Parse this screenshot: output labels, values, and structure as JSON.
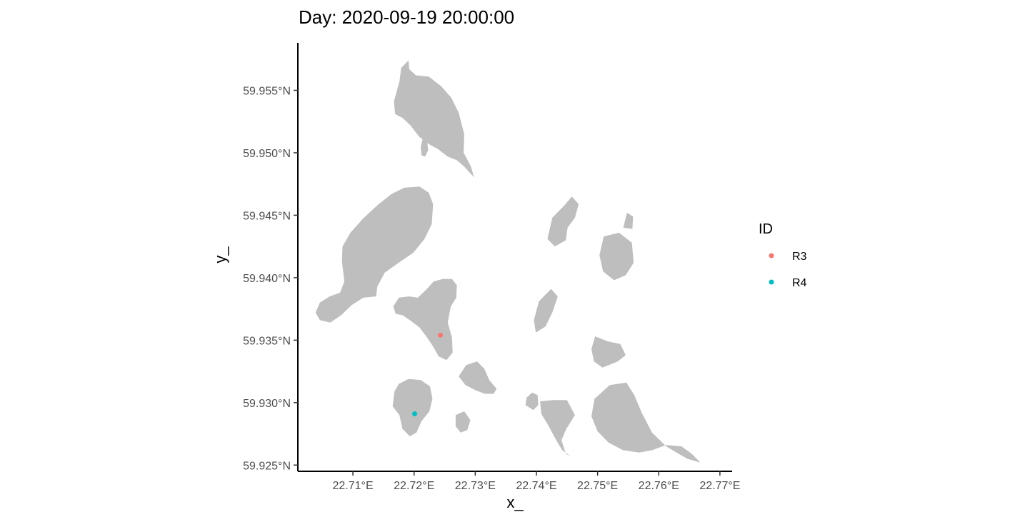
{
  "chart_data": {
    "type": "scatter",
    "title": "Day: 2020-09-19 20:00:00",
    "xlabel": "x_",
    "ylabel": "y_",
    "xlim": [
      22.701,
      22.772
    ],
    "ylim": [
      59.9245,
      59.9588
    ],
    "x_ticks": [
      {
        "value": 22.71,
        "label": "22.71°E"
      },
      {
        "value": 22.72,
        "label": "22.72°E"
      },
      {
        "value": 22.73,
        "label": "22.73°E"
      },
      {
        "value": 22.74,
        "label": "22.74°E"
      },
      {
        "value": 22.75,
        "label": "22.75°E"
      },
      {
        "value": 22.76,
        "label": "22.76°E"
      },
      {
        "value": 22.77,
        "label": "22.77°E"
      }
    ],
    "y_ticks": [
      {
        "value": 59.925,
        "label": "59.925°N"
      },
      {
        "value": 59.93,
        "label": "59.930°N"
      },
      {
        "value": 59.935,
        "label": "59.935°N"
      },
      {
        "value": 59.94,
        "label": "59.940°N"
      },
      {
        "value": 59.945,
        "label": "59.945°N"
      },
      {
        "value": 59.95,
        "label": "59.950°N"
      },
      {
        "value": 59.955,
        "label": "59.955°N"
      }
    ],
    "grid": false,
    "legend": {
      "title": "ID",
      "placement": "right"
    },
    "series": [
      {
        "name": "R3",
        "color": "#F8766D",
        "x": [
          22.7243
        ],
        "y": [
          59.9354
        ]
      },
      {
        "name": "R4",
        "color": "#00BFC4",
        "x": [
          22.7201
        ],
        "y": [
          59.9291
        ]
      }
    ],
    "land_color": "#bebebe",
    "islands": [
      [
        [
          22.7167,
          59.9541
        ],
        [
          22.7176,
          59.9557
        ],
        [
          22.7179,
          59.9568
        ],
        [
          22.7191,
          59.9574
        ],
        [
          22.7192,
          59.9567
        ],
        [
          22.7203,
          59.9562
        ],
        [
          22.7224,
          59.9561
        ],
        [
          22.7245,
          59.9553
        ],
        [
          22.7261,
          59.9544
        ],
        [
          22.7273,
          59.9532
        ],
        [
          22.7282,
          59.9515
        ],
        [
          22.7281,
          59.95
        ],
        [
          22.7293,
          59.9489
        ],
        [
          22.7297,
          59.9482
        ],
        [
          22.7299,
          59.948
        ],
        [
          22.7291,
          59.9484
        ],
        [
          22.7282,
          59.9489
        ],
        [
          22.727,
          59.9494
        ],
        [
          22.7255,
          59.9497
        ],
        [
          22.7239,
          59.9503
        ],
        [
          22.7224,
          59.9507
        ],
        [
          22.7208,
          59.9513
        ],
        [
          22.7194,
          59.9522
        ],
        [
          22.7181,
          59.9528
        ],
        [
          22.7169,
          59.9531
        ]
      ],
      [
        [
          22.7214,
          59.9511
        ],
        [
          22.7221,
          59.9511
        ],
        [
          22.7223,
          59.9502
        ],
        [
          22.7218,
          59.9497
        ],
        [
          22.7212,
          59.9498
        ],
        [
          22.7211,
          59.9505
        ]
      ],
      [
        [
          22.7062,
          59.9385
        ],
        [
          22.7079,
          59.9388
        ],
        [
          22.7086,
          59.9397
        ],
        [
          22.7082,
          59.9413
        ],
        [
          22.7083,
          59.9425
        ],
        [
          22.7096,
          59.9436
        ],
        [
          22.7116,
          59.9447
        ],
        [
          22.714,
          59.9458
        ],
        [
          22.7163,
          59.9467
        ],
        [
          22.7184,
          59.9472
        ],
        [
          22.7209,
          59.9473
        ],
        [
          22.7224,
          59.9468
        ],
        [
          22.7231,
          59.9459
        ],
        [
          22.7229,
          59.9443
        ],
        [
          22.7217,
          59.9431
        ],
        [
          22.7199,
          59.942
        ],
        [
          22.7172,
          59.9411
        ],
        [
          22.7152,
          59.9404
        ],
        [
          22.714,
          59.9393
        ],
        [
          22.7138,
          59.9385
        ],
        [
          22.7117,
          59.9384
        ],
        [
          22.7098,
          59.9378
        ],
        [
          22.7081,
          59.937
        ],
        [
          22.7063,
          59.9364
        ],
        [
          22.7046,
          59.9366
        ],
        [
          22.7039,
          59.9372
        ],
        [
          22.7046,
          59.938
        ]
      ],
      [
        [
          22.7166,
          59.9377
        ],
        [
          22.7175,
          59.9384
        ],
        [
          22.7192,
          59.9385
        ],
        [
          22.7206,
          59.9384
        ],
        [
          22.7219,
          59.939
        ],
        [
          22.7232,
          59.9397
        ],
        [
          22.7247,
          59.9399
        ],
        [
          22.7262,
          59.9399
        ],
        [
          22.727,
          59.9394
        ],
        [
          22.7269,
          59.9384
        ],
        [
          22.726,
          59.9377
        ],
        [
          22.7255,
          59.9364
        ],
        [
          22.7262,
          59.9352
        ],
        [
          22.7263,
          59.934
        ],
        [
          22.7253,
          59.9334
        ],
        [
          22.724,
          59.9337
        ],
        [
          22.7231,
          59.9345
        ],
        [
          22.722,
          59.9353
        ],
        [
          22.7209,
          59.936
        ],
        [
          22.7196,
          59.9365
        ],
        [
          22.7181,
          59.937
        ],
        [
          22.717,
          59.9371
        ]
      ],
      [
        [
          22.7168,
          59.9309
        ],
        [
          22.7165,
          59.9297
        ],
        [
          22.7176,
          59.929
        ],
        [
          22.7181,
          59.9279
        ],
        [
          22.7193,
          59.9273
        ],
        [
          22.7204,
          59.9276
        ],
        [
          22.7212,
          59.9285
        ],
        [
          22.7225,
          59.9293
        ],
        [
          22.723,
          59.9303
        ],
        [
          22.7226,
          59.9313
        ],
        [
          22.7211,
          59.9318
        ],
        [
          22.7191,
          59.9319
        ],
        [
          22.7175,
          59.9315
        ]
      ],
      [
        [
          22.7268,
          59.929
        ],
        [
          22.7282,
          59.9293
        ],
        [
          22.7292,
          59.9286
        ],
        [
          22.7287,
          59.9278
        ],
        [
          22.7276,
          59.9276
        ],
        [
          22.7268,
          59.9281
        ]
      ],
      [
        [
          22.7273,
          59.9321
        ],
        [
          22.7285,
          59.933
        ],
        [
          22.7303,
          59.9333
        ],
        [
          22.7315,
          59.9327
        ],
        [
          22.7323,
          59.9318
        ],
        [
          22.7335,
          59.9311
        ],
        [
          22.733,
          59.9307
        ],
        [
          22.7316,
          59.9307
        ],
        [
          22.73,
          59.931
        ],
        [
          22.7284,
          59.9314
        ]
      ],
      [
        [
          22.7384,
          59.9304
        ],
        [
          22.7382,
          59.9298
        ],
        [
          22.7395,
          59.9294
        ],
        [
          22.7403,
          59.9298
        ],
        [
          22.7402,
          59.9306
        ],
        [
          22.7393,
          59.9308
        ]
      ],
      [
        [
          22.7406,
          59.9301
        ],
        [
          22.7427,
          59.9302
        ],
        [
          22.745,
          59.9302
        ],
        [
          22.7463,
          59.929
        ],
        [
          22.7449,
          59.9279
        ],
        [
          22.7441,
          59.927
        ],
        [
          22.7448,
          59.9259
        ],
        [
          22.7456,
          59.9257
        ],
        [
          22.7442,
          59.9262
        ],
        [
          22.743,
          59.9272
        ],
        [
          22.7418,
          59.9283
        ],
        [
          22.7408,
          59.9291
        ]
      ],
      [
        [
          22.7418,
          59.9431
        ],
        [
          22.7426,
          59.9448
        ],
        [
          22.7444,
          59.9457
        ],
        [
          22.7458,
          59.9465
        ],
        [
          22.7469,
          59.9459
        ],
        [
          22.7463,
          59.9448
        ],
        [
          22.7451,
          59.944
        ],
        [
          22.7448,
          59.943
        ],
        [
          22.743,
          59.9425
        ]
      ],
      [
        [
          22.7396,
          59.9366
        ],
        [
          22.7404,
          59.9381
        ],
        [
          22.7424,
          59.9391
        ],
        [
          22.7435,
          59.9385
        ],
        [
          22.7426,
          59.9372
        ],
        [
          22.7415,
          59.9361
        ],
        [
          22.7399,
          59.9356
        ]
      ],
      [
        [
          22.7503,
          59.9418
        ],
        [
          22.7509,
          59.9405
        ],
        [
          22.7527,
          59.9398
        ],
        [
          22.7546,
          59.9402
        ],
        [
          22.7559,
          59.9412
        ],
        [
          22.7556,
          59.9428
        ],
        [
          22.7535,
          59.9436
        ],
        [
          22.751,
          59.9433
        ]
      ],
      [
        [
          22.7542,
          59.944
        ],
        [
          22.7548,
          59.9452
        ],
        [
          22.7558,
          59.9449
        ],
        [
          22.7557,
          59.9439
        ]
      ],
      [
        [
          22.749,
          59.9343
        ],
        [
          22.7496,
          59.9353
        ],
        [
          22.7517,
          59.9349
        ],
        [
          22.7537,
          59.9347
        ],
        [
          22.7546,
          59.9338
        ],
        [
          22.7533,
          59.9333
        ],
        [
          22.7508,
          59.9328
        ],
        [
          22.7494,
          59.9333
        ]
      ],
      [
        [
          22.749,
          59.9289
        ],
        [
          22.7495,
          59.9303
        ],
        [
          22.752,
          59.9314
        ],
        [
          22.7547,
          59.9316
        ],
        [
          22.756,
          59.9306
        ],
        [
          22.7572,
          59.9292
        ],
        [
          22.7589,
          59.9276
        ],
        [
          22.7612,
          59.9265
        ],
        [
          22.7629,
          59.926
        ],
        [
          22.7647,
          59.9255
        ],
        [
          22.7668,
          59.9252
        ],
        [
          22.7654,
          59.9259
        ],
        [
          22.7637,
          59.9265
        ],
        [
          22.7612,
          59.9266
        ],
        [
          22.759,
          59.9262
        ],
        [
          22.7568,
          59.926
        ],
        [
          22.7541,
          59.9262
        ],
        [
          22.7518,
          59.9268
        ],
        [
          22.75,
          59.9277
        ]
      ]
    ]
  }
}
